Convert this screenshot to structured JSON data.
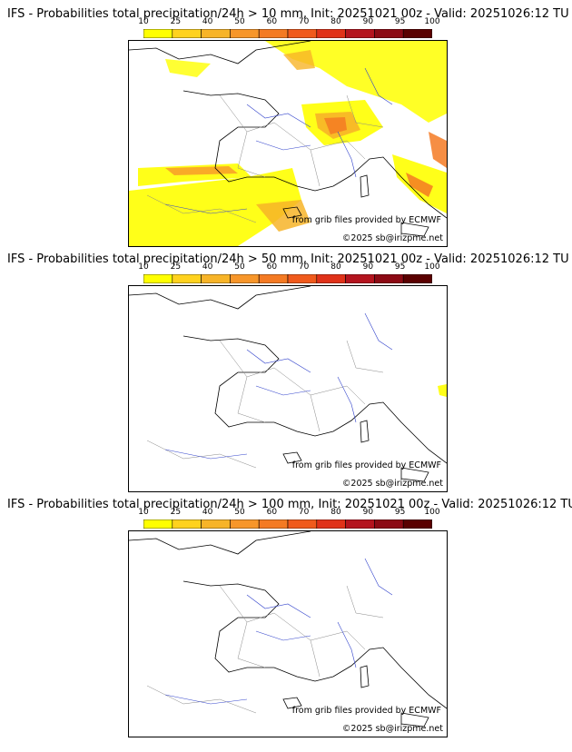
{
  "colorscale": {
    "ticks": [
      "10",
      "25",
      "40",
      "50",
      "60",
      "70",
      "80",
      "90",
      "95",
      "100"
    ],
    "colors": [
      "#ffff00",
      "#ffd21e",
      "#f7b428",
      "#f7962a",
      "#f47a23",
      "#f05a1c",
      "#e03219",
      "#b4141e",
      "#8c0a14",
      "#5a0000"
    ]
  },
  "panels": [
    {
      "title": "IFS - Probabilities total precipitation/24h > 10 mm, Init: 20251021 00z - Valid: 20251026:12 TU",
      "threshold": "10 mm",
      "source_credit": "from grib files provided by ECMWF",
      "copyright": "©2025 sb@irizpme.net"
    },
    {
      "title": "IFS - Probabilities total precipitation/24h > 50 mm, Init: 20251021 00z - Valid: 20251026:12 TU",
      "threshold": "50 mm",
      "source_credit": "from grib files provided by ECMWF",
      "copyright": "©2025 sb@irizpme.net"
    },
    {
      "title": "IFS - Probabilities total precipitation/24h > 100 mm, Init: 20251021 00z - Valid: 20251026:12 TU",
      "threshold": "100 mm",
      "source_credit": "from grib files provided by ECMWF",
      "copyright": "©2025 sb@irizpme.net"
    }
  ]
}
